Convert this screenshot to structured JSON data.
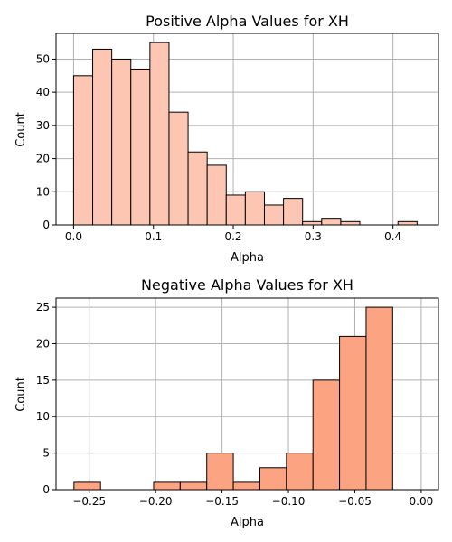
{
  "chart_data": [
    {
      "type": "bar",
      "title": "Positive Alpha Values for XH",
      "xlabel": "Alpha",
      "ylabel": "Count",
      "xlim": [
        -0.022,
        0.457
      ],
      "ylim": [
        0,
        57.75
      ],
      "xticks": [
        0.0,
        0.1,
        0.2,
        0.3,
        0.4
      ],
      "xtick_labels": [
        "0.0",
        "0.1",
        "0.2",
        "0.3",
        "0.4"
      ],
      "yticks": [
        0,
        10,
        20,
        30,
        40,
        50
      ],
      "ytick_labels": [
        "0",
        "10",
        "20",
        "30",
        "40",
        "50"
      ],
      "grid": true,
      "bar_color": "#fcc6b2",
      "bin_edges": [
        0.0,
        0.0239,
        0.0478,
        0.0717,
        0.0956,
        0.1195,
        0.1434,
        0.1673,
        0.1912,
        0.2151,
        0.239,
        0.2629,
        0.2868,
        0.3107,
        0.3346,
        0.3585,
        0.3824,
        0.4063,
        0.4302
      ],
      "values": [
        45,
        53,
        50,
        47,
        55,
        34,
        22,
        18,
        9,
        10,
        6,
        8,
        1,
        2,
        1,
        0,
        0,
        1
      ]
    },
    {
      "type": "bar",
      "title": "Negative Alpha Values for XH",
      "xlabel": "Alpha",
      "ylabel": "Count",
      "xlim": [
        -0.275,
        0.013
      ],
      "ylim": [
        0,
        26.25
      ],
      "xticks": [
        -0.25,
        -0.2,
        -0.15,
        -0.1,
        -0.05,
        0.0
      ],
      "xtick_labels": [
        "−0.25",
        "−0.20",
        "−0.15",
        "−0.10",
        "−0.05",
        "0.00"
      ],
      "yticks": [
        0,
        5,
        10,
        15,
        20,
        25
      ],
      "ytick_labels": [
        "0",
        "5",
        "10",
        "15",
        "20",
        "25"
      ],
      "grid": true,
      "bar_color": "#fca482",
      "bin_edges": [
        -0.2615,
        -0.2415,
        -0.2215,
        -0.2015,
        -0.1815,
        -0.1615,
        -0.1415,
        -0.1215,
        -0.1015,
        -0.0815,
        -0.0615,
        -0.0415,
        -0.0215,
        -0.0015
      ],
      "values": [
        1,
        0,
        0,
        1,
        1,
        5,
        1,
        3,
        5,
        15,
        21,
        25,
        0
      ]
    }
  ]
}
